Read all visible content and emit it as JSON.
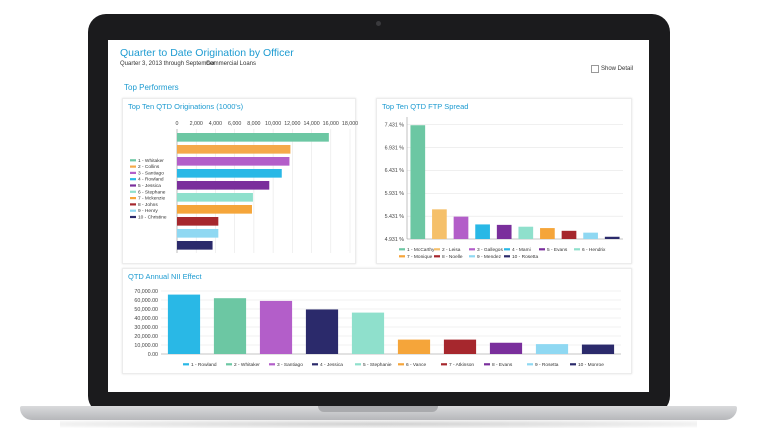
{
  "header": {
    "title": "Quarter to Date Origination by Officer",
    "period": "Quarter 3, 2013 through September",
    "department": "Commercial Loans",
    "show_detail_label": "Show Detail",
    "section_title": "Top Performers"
  },
  "chart_data": [
    {
      "type": "bar",
      "orientation": "horizontal",
      "title": "Top Ten QTD Originations (1000's)",
      "categories": [
        "1 - Whitaker",
        "2 - Collins",
        "3 - Santiago",
        "4 - Rowland",
        "5 - Jessica",
        "6 - Stephane",
        "7 - Mckenzie",
        "8 - Johns",
        "9 - Henry",
        "10 - Christine"
      ],
      "values": [
        15800,
        11800,
        11700,
        10900,
        9600,
        7900,
        7800,
        4300,
        4300,
        3700
      ],
      "colors": [
        "#6cc7a3",
        "#f5a94a",
        "#b35ec9",
        "#29b8e6",
        "#7a2f9c",
        "#8fe0cc",
        "#f5a53a",
        "#a6272d",
        "#8fd8f2",
        "#2b2a6b"
      ],
      "xlim": [
        0,
        18000
      ],
      "xticks": [
        "0",
        "2,000",
        "4,000",
        "6,000",
        "8,000",
        "10,000",
        "12,000",
        "14,000",
        "16,000",
        "18,000"
      ],
      "legend": "left",
      "grid": true
    },
    {
      "type": "bar",
      "title": "Top Ten QTD FTP Spread",
      "categories": [
        "1 - McCarthy",
        "2 - Leisa",
        "3 - Gallegos",
        "4 - Mami",
        "5 - Evans",
        "6 - Hendrix",
        "7 - Monique",
        "8 - Noelle",
        "9 - Mendez",
        "10 - Rosetta"
      ],
      "values": [
        7.42,
        5.58,
        5.42,
        5.25,
        5.24,
        5.2,
        5.17,
        5.11,
        5.07,
        4.98
      ],
      "colors": [
        "#6cc7a3",
        "#f5c06a",
        "#b35ec9",
        "#29b8e6",
        "#7a2f9c",
        "#8fe0cc",
        "#f5a53a",
        "#a6272d",
        "#8fd8f2",
        "#2b2a6b"
      ],
      "ylim": [
        4.931,
        7.6
      ],
      "yticks": [
        "4.931 %",
        "5.431 %",
        "5.931 %",
        "6.431 %",
        "6.931 %",
        "7.431 %"
      ],
      "legend": "bottom",
      "grid": true
    },
    {
      "type": "bar",
      "title": "QTD Annual NII Effect",
      "categories": [
        "1 - Rowland",
        "2 - Whitaker",
        "3 - Santiago",
        "4 - Jessica",
        "5 - Stephanie",
        "6 - Vance",
        "7 - Atkinson",
        "8 - Evans",
        "9 - Rosetta",
        "10 - Monroe"
      ],
      "values": [
        66000,
        62000,
        59000,
        49500,
        46000,
        16000,
        16000,
        12500,
        11000,
        10500
      ],
      "colors": [
        "#29b8e6",
        "#6cc7a3",
        "#b35ec9",
        "#2b2a6b",
        "#8fe0cc",
        "#f5a53a",
        "#a6272d",
        "#7a2f9c",
        "#8fd8f2",
        "#2b2a6b"
      ],
      "ylim": [
        0,
        70000
      ],
      "yticks": [
        "0.00",
        "10,000.00",
        "20,000.00",
        "30,000.00",
        "40,000.00",
        "50,000.00",
        "60,000.00",
        "70,000.00"
      ],
      "legend": "bottom",
      "grid": true
    }
  ]
}
